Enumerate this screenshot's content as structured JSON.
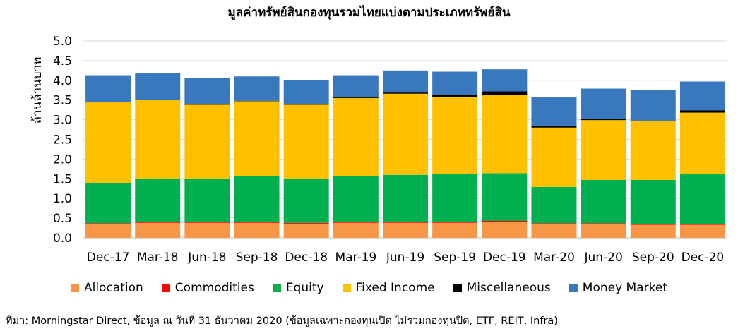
{
  "chart_data": {
    "type": "bar",
    "stacked": true,
    "title": "มูลค่าทรัพย์สินกองทุนรวมไทยแบ่งตามประเภททรัพย์สิน",
    "xlabel": "",
    "ylabel": "ล้านล้านบาท",
    "ylim": [
      0,
      5.0
    ],
    "yticks": [
      "0.0",
      "0.5",
      "1.0",
      "1.5",
      "2.0",
      "2.5",
      "3.0",
      "3.5",
      "4.0",
      "4.5",
      "5.0"
    ],
    "grid": true,
    "legend_position": "bottom",
    "categories": [
      "Dec-17",
      "Mar-18",
      "Jun-18",
      "Sep-18",
      "Dec-18",
      "Mar-19",
      "Jun-19",
      "Sep-19",
      "Dec-19",
      "Mar-20",
      "Jun-20",
      "Sep-20",
      "Dec-20"
    ],
    "series": [
      {
        "name": "Allocation",
        "color": "#F79646",
        "values": [
          0.35,
          0.38,
          0.38,
          0.38,
          0.36,
          0.38,
          0.38,
          0.38,
          0.41,
          0.35,
          0.35,
          0.33,
          0.33
        ]
      },
      {
        "name": "Commodities",
        "color": "#FF0000",
        "values": [
          0.02,
          0.02,
          0.02,
          0.02,
          0.02,
          0.02,
          0.02,
          0.02,
          0.02,
          0.02,
          0.02,
          0.02,
          0.02
        ]
      },
      {
        "name": "Equity",
        "color": "#00B050",
        "values": [
          1.03,
          1.1,
          1.1,
          1.16,
          1.12,
          1.16,
          1.2,
          1.22,
          1.21,
          0.92,
          1.1,
          1.12,
          1.27
        ]
      },
      {
        "name": "Fixed Income",
        "color": "#FFC000",
        "values": [
          2.04,
          2.0,
          1.88,
          1.91,
          1.88,
          1.99,
          2.06,
          1.96,
          1.98,
          1.51,
          1.52,
          1.49,
          1.56
        ]
      },
      {
        "name": "Miscellaneous",
        "color": "#000000",
        "values": [
          0.01,
          0.01,
          0.01,
          0.01,
          0.01,
          0.02,
          0.03,
          0.05,
          0.1,
          0.05,
          0.02,
          0.02,
          0.06
        ]
      },
      {
        "name": "Money Market",
        "color": "#3A78BE",
        "values": [
          0.68,
          0.68,
          0.67,
          0.62,
          0.61,
          0.56,
          0.56,
          0.59,
          0.56,
          0.72,
          0.78,
          0.77,
          0.73
        ]
      }
    ]
  },
  "source_note": "ที่มา: Morningstar Direct, ข้อมูล ณ วันที่ 31 ธันวาคม 2020 (ข้อมูลเฉพาะกองทุนเปิด ไม่รวมกองทุนปิด, ETF, REIT, Infra)"
}
